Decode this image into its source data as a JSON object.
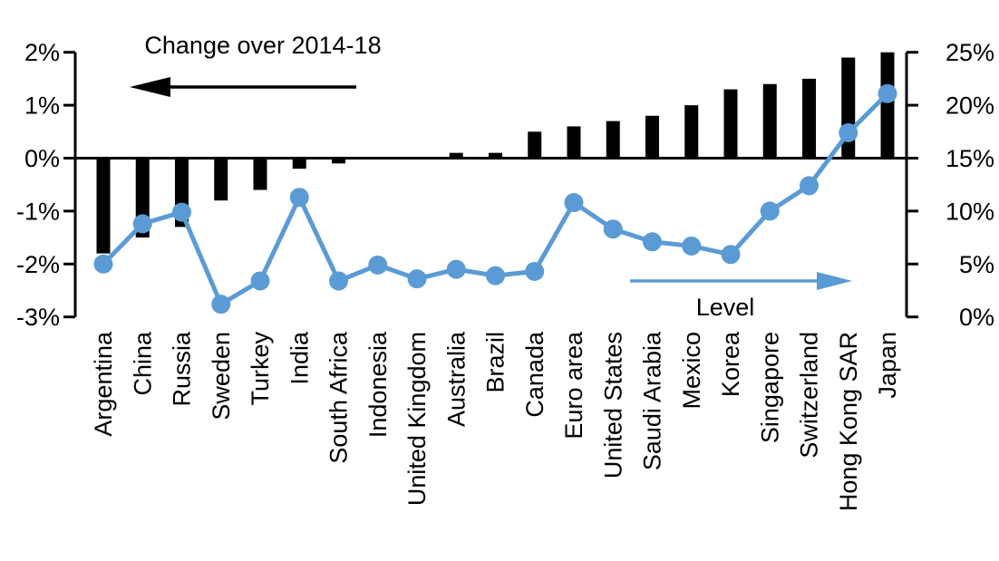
{
  "colors": {
    "bar": "#000000",
    "line": "#5B9BD5",
    "axis": "#000000",
    "background": "#ffffff"
  },
  "chart_data": {
    "type": "bar+line",
    "title": "Change over 2014-18",
    "grid": false,
    "categories": [
      "Argentina",
      "China",
      "Russia",
      "Sweden",
      "Turkey",
      "India",
      "South Africa",
      "Indonesia",
      "United Kingdom",
      "Australia",
      "Brazil",
      "Canada",
      "Euro area",
      "United States",
      "Saudi Arabia",
      "Mexico",
      "Korea",
      "Singapore",
      "Switzerland",
      "Hong Kong SAR",
      "Japan"
    ],
    "series": [
      {
        "name": "Change over 2014-18",
        "type": "bar",
        "axis": "left",
        "values": [
          -1.8,
          -1.5,
          -1.3,
          -0.8,
          -0.6,
          -0.2,
          -0.1,
          0,
          0,
          0.1,
          0.1,
          0.5,
          0.6,
          0.7,
          0.8,
          1.0,
          1.3,
          1.4,
          1.5,
          1.9,
          2.0
        ]
      },
      {
        "name": "Level",
        "type": "line",
        "axis": "right",
        "values": [
          5.0,
          8.8,
          9.9,
          1.2,
          3.4,
          11.3,
          3.4,
          4.9,
          3.6,
          4.5,
          3.9,
          4.3,
          10.8,
          8.3,
          7.1,
          6.7,
          5.9,
          10.0,
          12.4,
          17.4,
          21.1
        ]
      }
    ],
    "left_axis": {
      "min": -3,
      "max": 2,
      "tick_labels": [
        "2%",
        "1%",
        "0%",
        "-1%",
        "-2%",
        "-3%"
      ],
      "tick_values": [
        2,
        1,
        0,
        -1,
        -2,
        -3
      ]
    },
    "right_axis": {
      "min": 0,
      "max": 25,
      "tick_labels": [
        "25%",
        "20%",
        "15%",
        "10%",
        "5%",
        "0%"
      ],
      "tick_values": [
        25,
        20,
        15,
        10,
        5,
        0
      ]
    },
    "annotations": [
      {
        "text": "Change over 2014-18",
        "arrow": "left",
        "color": "#000000"
      },
      {
        "text": "Level",
        "arrow": "right",
        "color": "#5B9BD5"
      }
    ]
  }
}
